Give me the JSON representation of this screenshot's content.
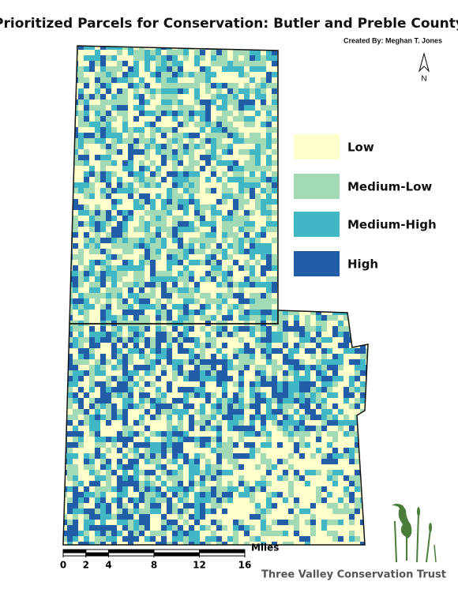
{
  "title": "Prioritized Parcels for Conservation: Butler and Preble County",
  "credit": "Created By: Meghan T. Jones",
  "north": "N",
  "legend": [
    {
      "label": "Low",
      "color": "#ffffcc"
    },
    {
      "label": "Medium-Low",
      "color": "#a1dab4"
    },
    {
      "label": "Medium-High",
      "color": "#41b6c4"
    },
    {
      "label": "High",
      "color": "#225ea8"
    }
  ],
  "scale_bar": {
    "ticks": [
      0,
      2,
      4,
      8,
      12,
      16
    ],
    "unit": "Miles"
  },
  "organization": "Three Valley Conservation Trust"
}
